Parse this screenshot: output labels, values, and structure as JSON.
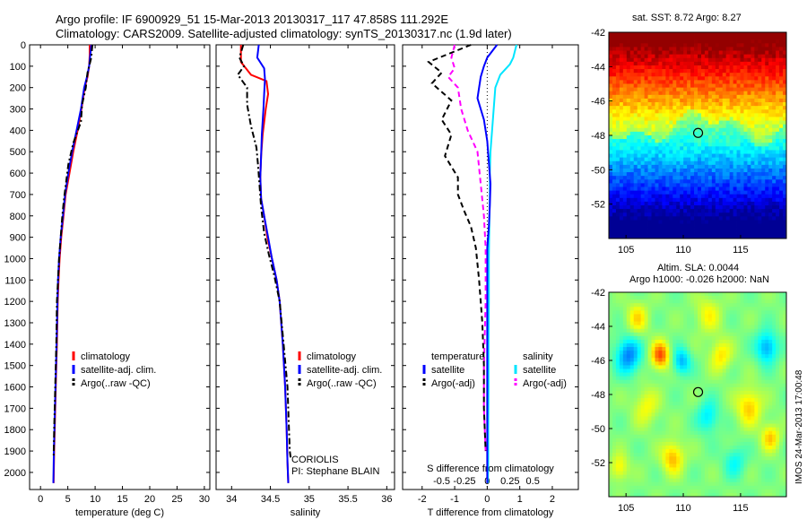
{
  "header": {
    "line1": "Argo profile: IF 6900929_51 15-Mar-2013 20130317_117 47.858S 111.292E",
    "line2": "Climatology: CARS2009. Satellite-adjusted climatology: synTS_20130317.nc (1.9d later)"
  },
  "colors": {
    "red": "#ff0000",
    "blue": "#0000ff",
    "black": "#000000",
    "cyan": "#00e5ff",
    "magenta": "#ff00ff"
  },
  "chart_data": [
    {
      "type": "line",
      "id": "temperature",
      "xlabel": "temperature (deg C)",
      "ylabel": "",
      "xlim": [
        -2,
        31
      ],
      "ylim": [
        2080,
        0
      ],
      "xticks": [
        0,
        5,
        10,
        15,
        20,
        25,
        30
      ],
      "yticks": [
        0,
        100,
        200,
        300,
        400,
        500,
        600,
        700,
        800,
        900,
        1000,
        1100,
        1200,
        1300,
        1400,
        1500,
        1600,
        1700,
        1800,
        1900,
        2000
      ],
      "legend": [
        {
          "label": "climatology",
          "color": "#ff0000",
          "style": "solid"
        },
        {
          "label": "satellite-adj. clim.",
          "color": "#0000ff",
          "style": "solid"
        },
        {
          "label": "Argo(..raw -QC)",
          "color": "#000000",
          "style": "dashdot"
        }
      ],
      "legend_position": "lower-middle",
      "series": [
        {
          "color": "#ff0000",
          "style": "solid",
          "x": [
            9.0,
            9.0,
            8.9,
            8.6,
            8.1,
            7.5,
            6.8,
            6.0,
            5.3,
            4.6,
            4.2,
            3.8,
            3.5,
            3.3,
            3.15,
            3.0,
            2.9,
            2.8,
            2.7,
            2.6,
            2.5,
            2.4
          ],
          "y": [
            0,
            50,
            100,
            150,
            200,
            300,
            400,
            500,
            600,
            700,
            800,
            900,
            1000,
            1100,
            1200,
            1400,
            1500,
            1600,
            1700,
            1800,
            1900,
            2050
          ]
        },
        {
          "color": "#0000ff",
          "style": "solid",
          "x": [
            9.3,
            9.1,
            8.9,
            8.5,
            8.0,
            7.4,
            6.6,
            5.8,
            5.1,
            4.5,
            4.1,
            3.7,
            3.4,
            3.2,
            3.1,
            2.95,
            2.85,
            2.75,
            2.65,
            2.55,
            2.45,
            2.35
          ],
          "y": [
            0,
            50,
            100,
            150,
            200,
            300,
            400,
            500,
            600,
            700,
            800,
            900,
            1000,
            1100,
            1200,
            1400,
            1500,
            1600,
            1700,
            1800,
            1900,
            2050
          ]
        },
        {
          "color": "#000000",
          "style": "dashdot",
          "x": [
            9.5,
            9.3,
            8.6,
            8.3,
            7.6,
            7.4,
            6.0,
            5.1,
            4.7,
            4.3,
            4.0,
            3.7,
            3.4,
            3.2,
            3.0,
            2.9,
            2.8,
            2.7,
            2.6,
            2.5,
            2.4
          ],
          "y": [
            0,
            60,
            130,
            200,
            280,
            360,
            460,
            560,
            640,
            720,
            800,
            900,
            1000,
            1100,
            1200,
            1400,
            1500,
            1600,
            1700,
            1800,
            1930
          ]
        }
      ]
    },
    {
      "type": "line",
      "id": "salinity",
      "xlabel": "salinity",
      "xlim": [
        33.8,
        36.1
      ],
      "ylim": [
        2080,
        0
      ],
      "xticks": [
        34,
        34.5,
        35,
        35.5,
        36
      ],
      "legend": [
        {
          "label": "climatology",
          "color": "#ff0000",
          "style": "solid"
        },
        {
          "label": "satellite-adj. clim.",
          "color": "#0000ff",
          "style": "solid"
        },
        {
          "label": "Argo(..raw -QC)",
          "color": "#000000",
          "style": "dashdot"
        }
      ],
      "legend_position": "lower-middle",
      "annotations": [
        "CORIOLIS",
        "PI: Stephane BLAIN"
      ],
      "series": [
        {
          "color": "#ff0000",
          "style": "solid",
          "x": [
            34.12,
            34.12,
            34.25,
            34.45,
            34.47,
            34.44,
            34.4,
            34.38,
            34.37,
            34.38,
            34.42,
            34.46,
            34.52,
            34.58,
            34.62,
            34.66,
            34.69,
            34.71,
            34.72,
            34.73
          ],
          "y": [
            0,
            80,
            140,
            170,
            230,
            300,
            420,
            520,
            620,
            720,
            800,
            900,
            1000,
            1100,
            1200,
            1400,
            1600,
            1800,
            1950,
            2050
          ]
        },
        {
          "color": "#0000ff",
          "style": "solid",
          "x": [
            34.35,
            34.33,
            34.42,
            34.43,
            34.42,
            34.41,
            34.39,
            34.38,
            34.37,
            34.38,
            34.42,
            34.47,
            34.52,
            34.58,
            34.62,
            34.66,
            34.69,
            34.71,
            34.72,
            34.73
          ],
          "y": [
            0,
            60,
            110,
            160,
            230,
            300,
            420,
            520,
            620,
            720,
            800,
            900,
            1000,
            1100,
            1200,
            1400,
            1600,
            1800,
            1950,
            2050
          ]
        },
        {
          "color": "#000000",
          "style": "dashdot",
          "x": [
            34.15,
            34.1,
            34.16,
            34.08,
            34.2,
            34.2,
            34.25,
            34.32,
            34.34,
            34.36,
            34.38,
            34.42,
            34.48,
            34.55,
            34.62,
            34.67,
            34.72,
            34.74,
            34.75,
            34.76
          ],
          "y": [
            0,
            60,
            100,
            140,
            200,
            280,
            380,
            480,
            560,
            660,
            760,
            880,
            980,
            1080,
            1200,
            1400,
            1600,
            1800,
            1900,
            1930
          ]
        }
      ]
    },
    {
      "type": "line",
      "id": "difference",
      "xlabel": "T difference from climatology",
      "xlabel_top": "S difference from climatology",
      "xlim": [
        -2.6,
        2.8
      ],
      "ylim": [
        2080,
        0
      ],
      "xticks": [
        -2,
        -1,
        0,
        1,
        2
      ],
      "xticks_s": [
        "-0.5",
        "-0.25",
        "0",
        "0.25",
        "0.5"
      ],
      "legend": [
        {
          "group": "temperature",
          "label": "satellite",
          "color": "#0000ff",
          "style": "solid"
        },
        {
          "group": "temperature",
          "label": "Argo(-adj)",
          "color": "#000000",
          "style": "dashed"
        },
        {
          "group": "salinity",
          "label": "satellite",
          "color": "#00e5ff",
          "style": "solid"
        },
        {
          "group": "salinity",
          "label": "Argo(-adj)",
          "color": "#ff00ff",
          "style": "dashed"
        }
      ],
      "legend_position": "lower-middle",
      "series": [
        {
          "color": "#00e5ff",
          "style": "solid",
          "x": [
            0.9,
            0.8,
            0.7,
            0.4,
            0.25,
            0.2,
            0.15,
            0.1,
            0.08,
            0.08,
            0.07,
            0.06,
            0.05,
            0.05,
            0.04,
            0.04,
            0.03,
            0.03,
            0.02
          ],
          "y": [
            0,
            60,
            90,
            140,
            200,
            300,
            400,
            500,
            600,
            700,
            800,
            900,
            1000,
            1200,
            1400,
            1600,
            1800,
            1950,
            2050
          ]
        },
        {
          "color": "#0000ff",
          "style": "solid",
          "x": [
            0.3,
            0.0,
            -0.1,
            -0.2,
            -0.3,
            -0.1,
            0.0,
            0.05,
            0.1,
            0.08,
            0.05,
            0.0,
            0.0,
            0.0,
            0.0,
            0.0,
            0.0,
            0.0
          ],
          "y": [
            0,
            60,
            100,
            150,
            250,
            350,
            450,
            550,
            650,
            750,
            850,
            950,
            1100,
            1300,
            1500,
            1700,
            1900,
            2050
          ]
        },
        {
          "color": "#ff00ff",
          "style": "dashed",
          "x": [
            -1.0,
            -1.1,
            -1.0,
            -1.2,
            -0.9,
            -0.8,
            -0.6,
            -0.3,
            -0.2,
            -0.1,
            -0.05,
            -0.05,
            -0.1,
            -0.1,
            -0.05
          ],
          "y": [
            0,
            60,
            110,
            150,
            200,
            300,
            400,
            500,
            650,
            800,
            950,
            1200,
            1500,
            1700,
            1900
          ]
        },
        {
          "color": "#000000",
          "style": "dashed",
          "x": [
            -0.5,
            -1.8,
            -1.4,
            -1.7,
            -1.1,
            -1.4,
            -1.1,
            -1.3,
            -0.9,
            -0.9,
            -0.7,
            -0.5,
            -0.35,
            -0.25,
            -0.15,
            -0.1,
            -0.1,
            -0.05
          ],
          "y": [
            0,
            80,
            130,
            180,
            260,
            350,
            420,
            520,
            620,
            700,
            780,
            850,
            950,
            1100,
            1300,
            1500,
            1700,
            1900
          ]
        }
      ]
    }
  ],
  "map_sst": {
    "title": "sat. SST: 8.72 Argo: 8.27",
    "yticks": [
      "-42",
      "-44",
      "-46",
      "-48",
      "-50",
      "-52"
    ],
    "xticks": [
      "105",
      "110",
      "115"
    ],
    "lat": [
      -42,
      -54
    ],
    "lon": [
      103.5,
      119
    ],
    "argo_lon": 111.292,
    "argo_lat": -47.858
  },
  "map_sla": {
    "title_line1": "Altim. SLA: 0.0044",
    "title_line2": "Argo h1000: -0.026 h2000: NaN",
    "yticks": [
      "-42",
      "-44",
      "-46",
      "-48",
      "-50",
      "-52"
    ],
    "xticks": [
      "105",
      "110",
      "115"
    ],
    "lat": [
      -42,
      -54
    ],
    "lon": [
      103.5,
      119
    ],
    "argo_lon": 111.292,
    "argo_lat": -47.858
  },
  "stamp": "IMOS 24-Mar-2013 17:00:48"
}
